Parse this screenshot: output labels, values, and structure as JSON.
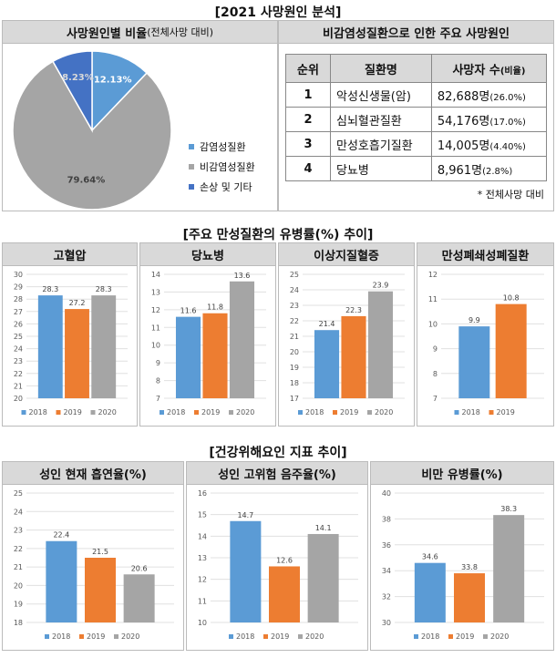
{
  "section1": {
    "title": "[2021 사망원인 분석]",
    "pie_panel": {
      "title": "사망원인별 비율",
      "subtitle": "(전체사망 대비)"
    },
    "table_panel": {
      "title": "비감염성질환으로 인한 주요 사망원인",
      "headers": {
        "rank": "순위",
        "disease": "질환명",
        "deaths": "사망자 수",
        "deaths_sub": "(비율)"
      },
      "rows": [
        {
          "rank": "1",
          "disease": "악성신생물(암)",
          "count": "82,688명",
          "ratio": "(26.0%)"
        },
        {
          "rank": "2",
          "disease": "심뇌혈관질환",
          "count": "54,176명",
          "ratio": "(17.0%)"
        },
        {
          "rank": "3",
          "disease": "만성호흡기질환",
          "count": "14,005명",
          "ratio": "(4.40%)"
        },
        {
          "rank": "4",
          "disease": "당뇨병",
          "count": "8,961명",
          "ratio": "(2.8%)"
        }
      ],
      "note": "* 전체사망 대비"
    }
  },
  "section2": {
    "title": "[주요 만성질환의 유병률(%) 추이]"
  },
  "section3": {
    "title": "[건강위해요인 지표 추이]"
  },
  "colors": {
    "s2018": "#5b9bd5",
    "s2019": "#ed7d31",
    "s2020": "#a5a5a5",
    "pie_injury": "#4472c4"
  },
  "chart_data": [
    {
      "type": "pie",
      "title": "사망원인별 비율",
      "labels": [
        "감염성질환",
        "비감염성질환",
        "손상 및 기타"
      ],
      "values": [
        12.13,
        79.64,
        8.23
      ],
      "value_labels": [
        "12.13%",
        "79.64%",
        "8.23%"
      ],
      "legend": "right"
    },
    {
      "type": "bar",
      "title": "고혈압",
      "categories": [
        "2018",
        "2019",
        "2020"
      ],
      "values": [
        28.3,
        27.2,
        28.3
      ],
      "ylim": [
        20,
        30
      ],
      "ticks": [
        20,
        21,
        22,
        23,
        24,
        25,
        26,
        27,
        28,
        29,
        30
      ],
      "grid": true
    },
    {
      "type": "bar",
      "title": "당뇨병",
      "categories": [
        "2018",
        "2019",
        "2020"
      ],
      "values": [
        11.6,
        11.8,
        13.6
      ],
      "ylim": [
        7,
        14
      ],
      "ticks": [
        7,
        8,
        9,
        10,
        11,
        12,
        13,
        14
      ],
      "grid": true
    },
    {
      "type": "bar",
      "title": "이상지질혈증",
      "categories": [
        "2018",
        "2019",
        "2020"
      ],
      "values": [
        21.4,
        22.3,
        23.9
      ],
      "ylim": [
        17,
        25
      ],
      "ticks": [
        17,
        18,
        19,
        20,
        21,
        22,
        23,
        24,
        25
      ],
      "grid": true
    },
    {
      "type": "bar",
      "title": "만성폐쇄성폐질환",
      "categories": [
        "2018",
        "2019"
      ],
      "values": [
        9.9,
        10.8
      ],
      "ylim": [
        7,
        12
      ],
      "ticks": [
        7,
        8,
        9,
        10,
        11,
        12
      ],
      "grid": true
    },
    {
      "type": "bar",
      "title": "성인 현재 흡연율(%)",
      "categories": [
        "2018",
        "2019",
        "2020"
      ],
      "values": [
        22.4,
        21.5,
        20.6
      ],
      "ylim": [
        18,
        25
      ],
      "ticks": [
        18,
        19,
        20,
        21,
        22,
        23,
        24,
        25
      ],
      "grid": true
    },
    {
      "type": "bar",
      "title": "성인 고위험 음주율(%)",
      "categories": [
        "2018",
        "2019",
        "2020"
      ],
      "values": [
        14.7,
        12.6,
        14.1
      ],
      "ylim": [
        10,
        16
      ],
      "ticks": [
        10,
        11,
        12,
        13,
        14,
        15,
        16
      ],
      "grid": true
    },
    {
      "type": "bar",
      "title": "비만 유병률(%)",
      "categories": [
        "2018",
        "2019",
        "2020"
      ],
      "values": [
        34.6,
        33.8,
        38.3
      ],
      "ylim": [
        30,
        40
      ],
      "ticks": [
        30,
        32,
        34,
        36,
        38,
        40
      ],
      "grid": true
    }
  ]
}
